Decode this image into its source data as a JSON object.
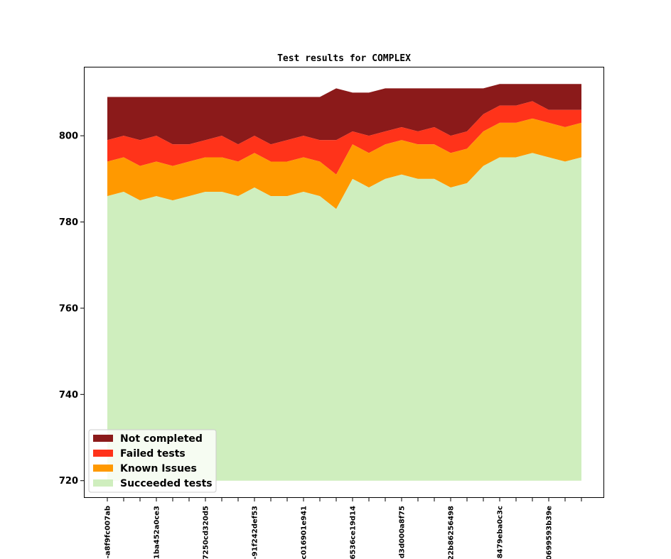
{
  "chart_data": {
    "type": "area",
    "stacked": true,
    "title": "Test results for COMPLEX",
    "xlabel": "",
    "ylabel": "",
    "ylim": [
      716,
      816
    ],
    "yticks": [
      720,
      740,
      760,
      780,
      800
    ],
    "x_count": 30,
    "x_tick_labels": [
      {
        "index": 0,
        "label": "-a8f9fc007ab"
      },
      {
        "index": 3,
        "label": "1ba452a0ce3"
      },
      {
        "index": 6,
        "label": "7250cd320d5"
      },
      {
        "index": 9,
        "label": "-91f242def53"
      },
      {
        "index": 12,
        "label": "c016901e941"
      },
      {
        "index": 15,
        "label": "6536ce19d14"
      },
      {
        "index": 18,
        "label": "d3d000a8f75"
      },
      {
        "index": 21,
        "label": "22b86256498"
      },
      {
        "index": 24,
        "label": "-8479eba0c3c"
      },
      {
        "index": 27,
        "label": "0699593b39e"
      }
    ],
    "baseline": 720,
    "legend_position": "lower-left",
    "series": [
      {
        "name": "Succeeded tests",
        "color": "#cfeebe",
        "values": [
          786,
          787,
          785,
          786,
          785,
          786,
          787,
          787,
          786,
          788,
          786,
          786,
          787,
          786,
          783,
          790,
          788,
          790,
          791,
          790,
          790,
          788,
          789,
          793,
          795,
          795,
          796,
          795,
          794,
          795
        ]
      },
      {
        "name": "Known Issues",
        "color": "#ff9900",
        "values": [
          794,
          795,
          793,
          794,
          793,
          794,
          795,
          795,
          794,
          796,
          794,
          794,
          795,
          794,
          791,
          798,
          796,
          798,
          799,
          798,
          798,
          796,
          797,
          801,
          803,
          803,
          804,
          803,
          802,
          803
        ]
      },
      {
        "name": "Failed tests",
        "color": "#ff331a",
        "values": [
          799,
          800,
          799,
          800,
          798,
          798,
          799,
          800,
          798,
          800,
          798,
          799,
          800,
          799,
          799,
          801,
          800,
          801,
          802,
          801,
          802,
          800,
          801,
          805,
          807,
          807,
          808,
          806,
          806,
          806
        ]
      },
      {
        "name": "Not completed",
        "color": "#8b1a1a",
        "values": [
          809,
          809,
          809,
          809,
          809,
          809,
          809,
          809,
          809,
          809,
          809,
          809,
          809,
          809,
          811,
          810,
          810,
          811,
          811,
          811,
          811,
          811,
          811,
          811,
          812,
          812,
          812,
          812,
          812,
          812
        ]
      }
    ],
    "legend_order": [
      "Not completed",
      "Failed tests",
      "Known Issues",
      "Succeeded tests"
    ]
  }
}
